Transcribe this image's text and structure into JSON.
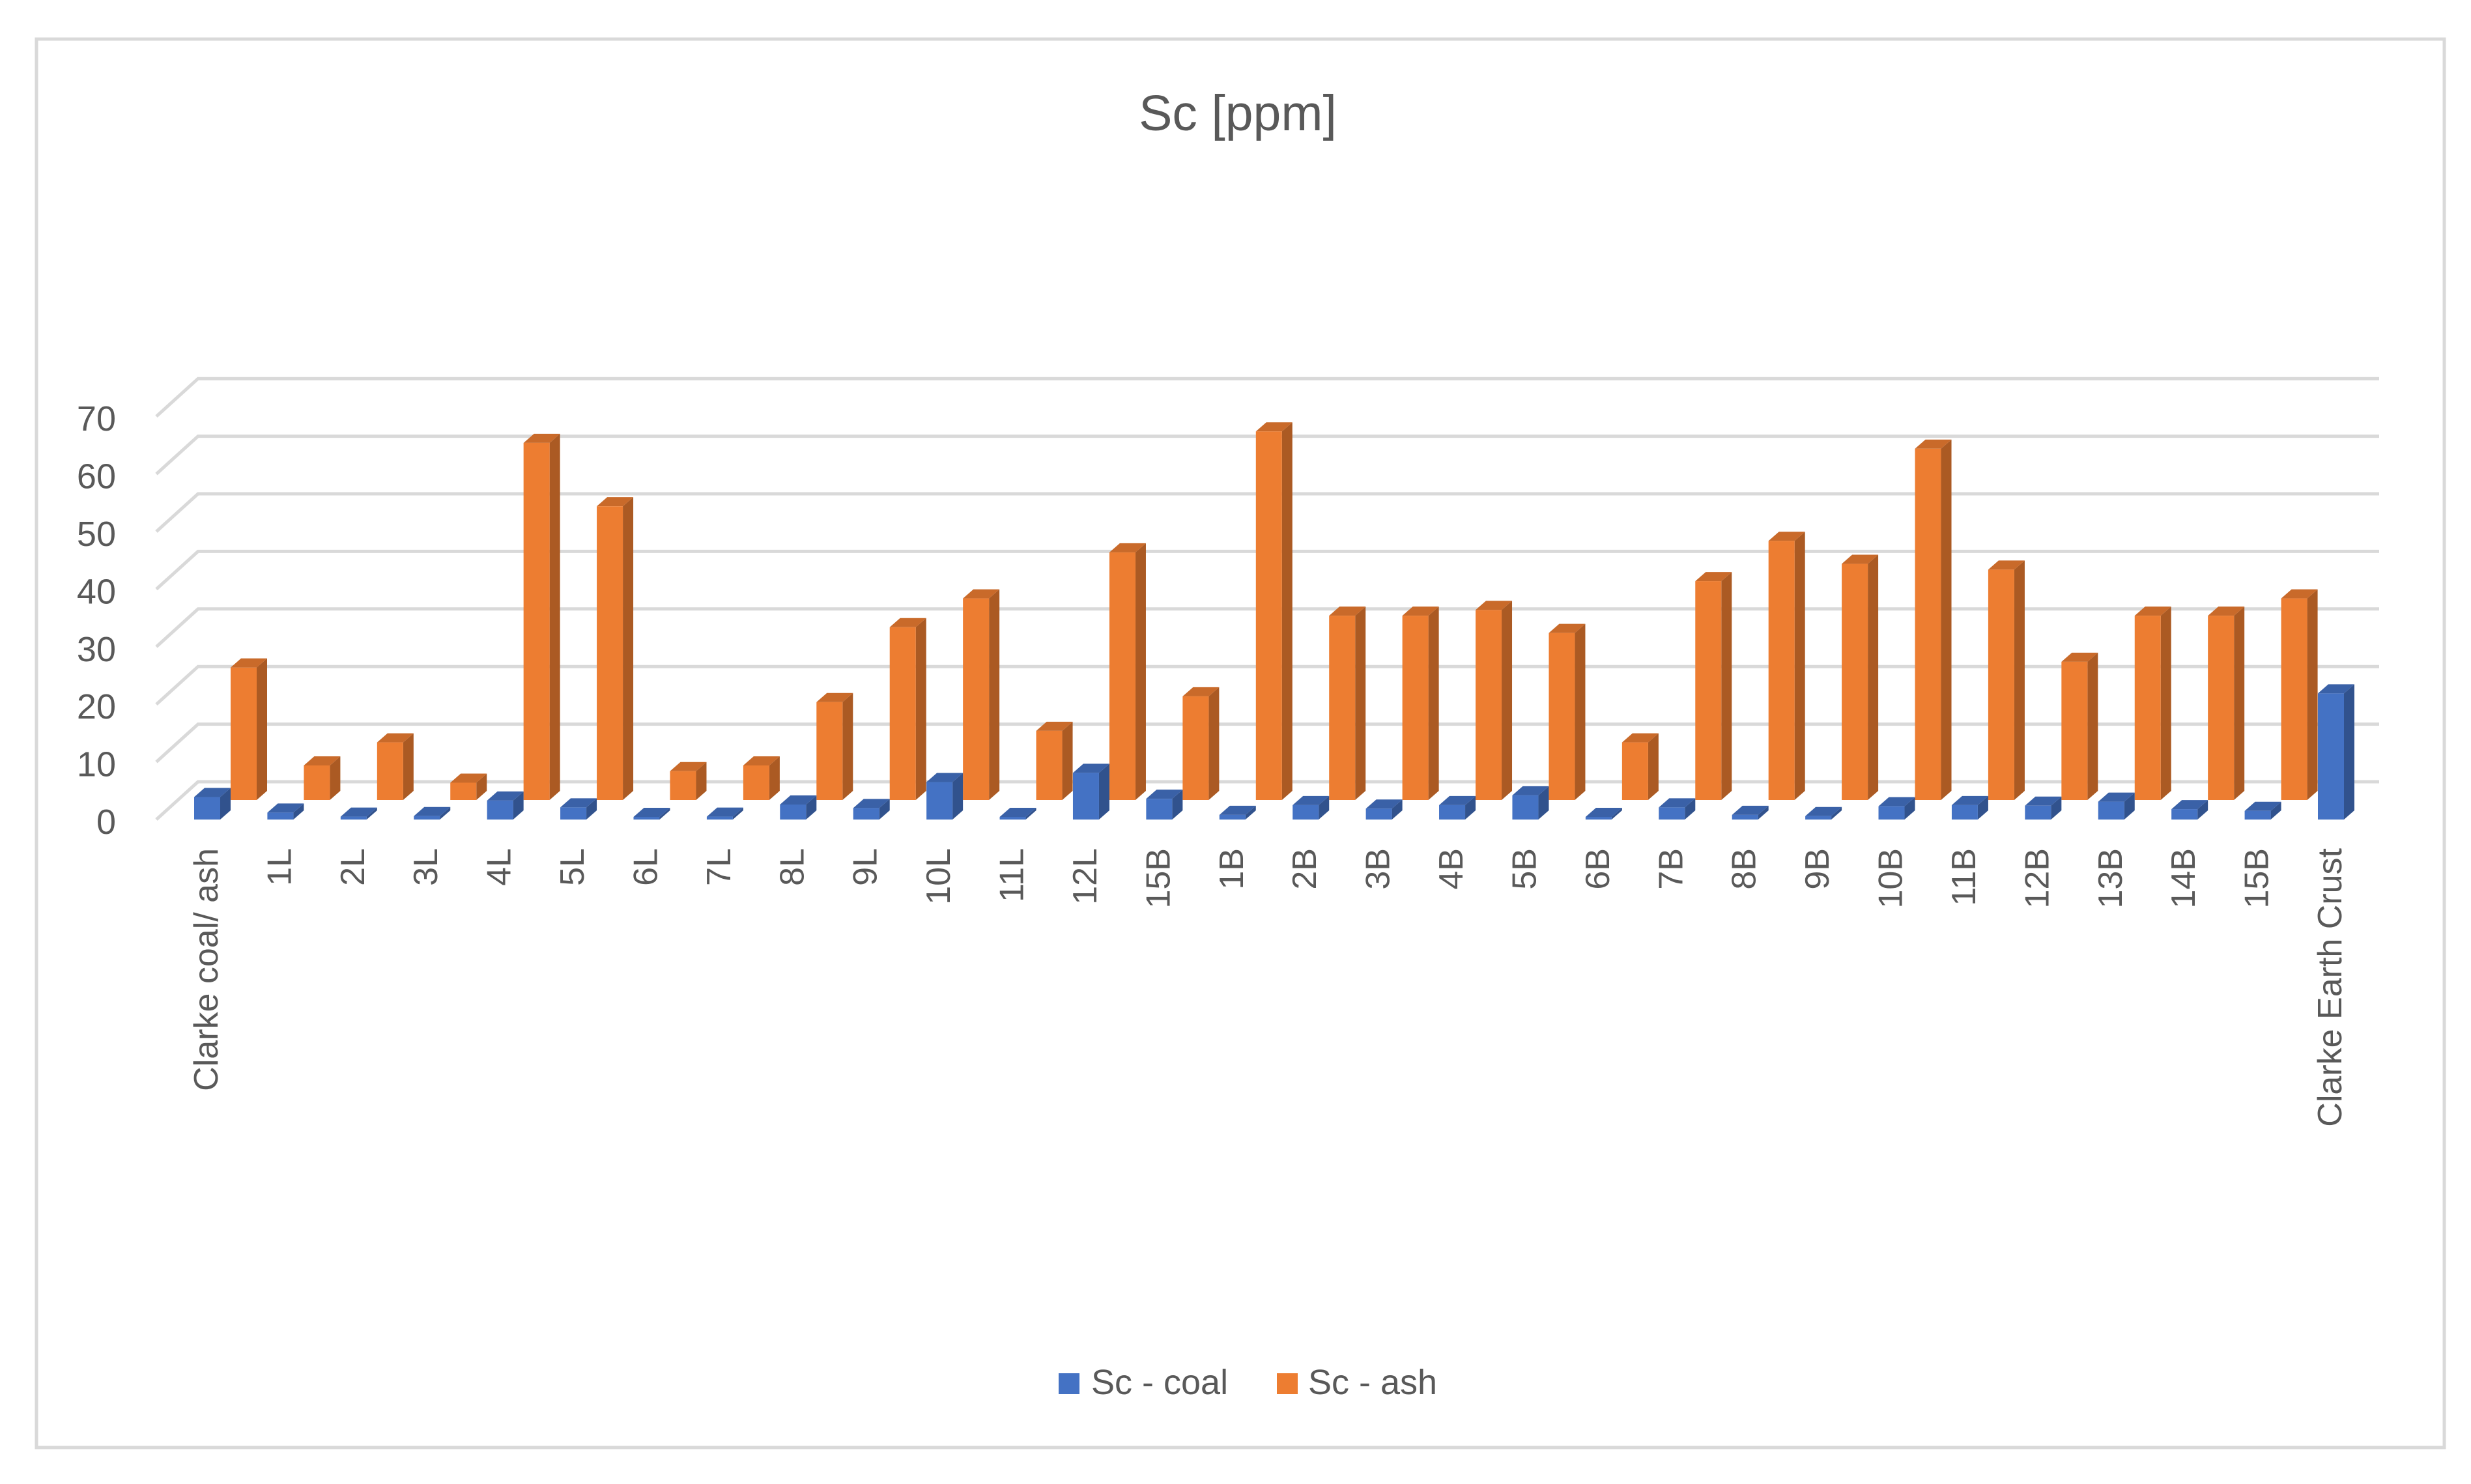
{
  "chart_data": {
    "type": "bar",
    "title": "Sc [ppm]",
    "xlabel": "",
    "ylabel": "",
    "ylim": [
      0,
      70
    ],
    "yticks": [
      0,
      10,
      20,
      30,
      40,
      50,
      60,
      70
    ],
    "grid": true,
    "legend_position": "bottom",
    "three_d": true,
    "categories": [
      "Clarke coal/ ash",
      "1L",
      "2L",
      "3L",
      "4L",
      "5L",
      "6L",
      "7L",
      "8L",
      "9L",
      "10L",
      "11L",
      "12L",
      "15B",
      "1B",
      "2B",
      "3B",
      "4B",
      "5B",
      "6B",
      "7B",
      "8B",
      "9B",
      "10B",
      "11B",
      "12B",
      "13B",
      "14B",
      "15B",
      "Clarke Earth Crust"
    ],
    "series": [
      {
        "name": "Sc - coal",
        "color": "#4472C4",
        "values": [
          3.9,
          1.2,
          0.5,
          0.6,
          3.3,
          2.1,
          0.3,
          0.5,
          2.6,
          2.0,
          6.5,
          0.3,
          8.1,
          3.6,
          0.8,
          2.5,
          1.9,
          2.5,
          4.2,
          0.4,
          2.1,
          0.8,
          0.6,
          2.3,
          2.5,
          2.4,
          3.1,
          1.8,
          1.5,
          21.9
        ]
      },
      {
        "name": "Sc - ash",
        "color": "#ED7D31",
        "values": [
          23,
          6,
          10,
          3,
          62,
          51,
          5,
          6,
          17,
          30,
          35,
          12,
          43,
          18,
          64,
          32,
          32,
          33,
          29,
          10,
          38,
          45,
          41,
          61,
          40,
          24,
          32,
          32,
          35,
          null
        ]
      }
    ]
  }
}
